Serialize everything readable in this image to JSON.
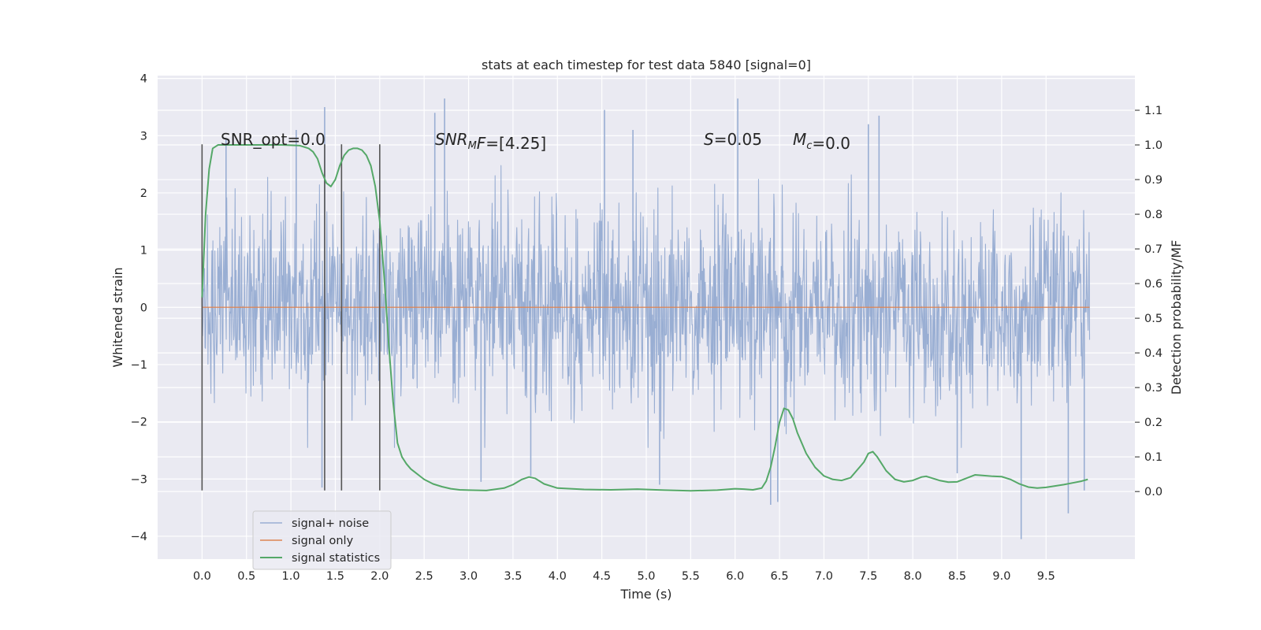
{
  "chart_data": {
    "type": "line",
    "title": "stats at each timestep for test data 5840 [signal=0]",
    "xlabel": "Time (s)",
    "ylabel": "Whitened strain",
    "y2label": "Detection probability/MF",
    "xlim": [
      -0.5,
      10.5
    ],
    "ylim": [
      -4.4,
      4.05
    ],
    "y2lim": [
      -0.195,
      1.2
    ],
    "x_ticks": [
      0.0,
      0.5,
      1.0,
      1.5,
      2.0,
      2.5,
      3.0,
      3.5,
      4.0,
      4.5,
      5.0,
      5.5,
      6.0,
      6.5,
      7.0,
      7.5,
      8.0,
      8.5,
      9.0,
      9.5
    ],
    "x_tick_labels": [
      "0.0",
      "0.5",
      "1.0",
      "1.5",
      "2.0",
      "2.5",
      "3.0",
      "3.5",
      "4.0",
      "4.5",
      "5.0",
      "5.5",
      "6.0",
      "6.5",
      "7.0",
      "7.5",
      "8.0",
      "8.5",
      "9.0",
      "9.5"
    ],
    "y_ticks": [
      -4,
      -3,
      -2,
      -1,
      0,
      1,
      2,
      3,
      4
    ],
    "y_tick_labels": [
      "−4",
      "−3",
      "−2",
      "−1",
      "0",
      "1",
      "2",
      "3",
      "4"
    ],
    "y2_ticks": [
      0.0,
      0.1,
      0.2,
      0.3,
      0.4,
      0.5,
      0.6,
      0.7,
      0.8,
      0.9,
      1.0,
      1.1
    ],
    "y2_tick_labels": [
      "0.0",
      "0.1",
      "0.2",
      "0.3",
      "0.4",
      "0.5",
      "0.6",
      "0.7",
      "0.8",
      "0.9",
      "1.0",
      "1.1"
    ],
    "grid": true,
    "legend_position": "lower-left",
    "colors": {
      "plot_background": "#eaeaf2",
      "grid": "#ffffff",
      "noise": "#99aed3",
      "signal": "#dd8452",
      "stats": "#55a868",
      "markers": "#555555"
    },
    "series": [
      {
        "name": "signal+ noise",
        "description_of_extent": "dense noise band, core roughly -1 to 1, spikes up to about 3.6 and down to about -4.0",
        "x_range": [
          0.0,
          9.99
        ],
        "envelope_spikes": [
          {
            "x": 0.27,
            "y": 2.95
          },
          {
            "x": 1.38,
            "y": 3.5
          },
          {
            "x": 1.06,
            "y": 3.1
          },
          {
            "x": 1.35,
            "y": -3.15
          },
          {
            "x": 2.73,
            "y": 3.65
          },
          {
            "x": 2.62,
            "y": 3.4
          },
          {
            "x": 3.7,
            "y": -2.95
          },
          {
            "x": 4.53,
            "y": 3.45
          },
          {
            "x": 4.85,
            "y": 3.1
          },
          {
            "x": 5.15,
            "y": -3.1
          },
          {
            "x": 6.03,
            "y": 3.65
          },
          {
            "x": 6.4,
            "y": -3.45
          },
          {
            "x": 6.48,
            "y": -3.4
          },
          {
            "x": 7.62,
            "y": 3.35
          },
          {
            "x": 7.5,
            "y": 3.2
          },
          {
            "x": 8.5,
            "y": -2.9
          },
          {
            "x": 9.22,
            "y": -4.05
          },
          {
            "x": 9.75,
            "y": -3.6
          },
          {
            "x": 9.93,
            "y": -3.2
          },
          {
            "x": 3.14,
            "y": -3.05
          }
        ]
      },
      {
        "name": "signal only",
        "x": [
          0.0,
          9.99
        ],
        "y": [
          0.0,
          0.0
        ]
      },
      {
        "name": "signal statistics",
        "axis": "right",
        "x": [
          0.0,
          0.04,
          0.08,
          0.12,
          0.18,
          0.25,
          0.35,
          0.5,
          0.7,
          0.9,
          1.1,
          1.2,
          1.25,
          1.3,
          1.35,
          1.4,
          1.45,
          1.5,
          1.55,
          1.6,
          1.65,
          1.7,
          1.75,
          1.8,
          1.85,
          1.9,
          1.95,
          2.0,
          2.05,
          2.1,
          2.15,
          2.2,
          2.25,
          2.3,
          2.35,
          2.4,
          2.45,
          2.5,
          2.6,
          2.7,
          2.8,
          2.9,
          3.0,
          3.2,
          3.4,
          3.5,
          3.6,
          3.68,
          3.75,
          3.85,
          4.0,
          4.3,
          4.6,
          4.9,
          5.2,
          5.5,
          5.8,
          6.0,
          6.1,
          6.2,
          6.3,
          6.35,
          6.4,
          6.45,
          6.5,
          6.55,
          6.6,
          6.65,
          6.7,
          6.8,
          6.9,
          7.0,
          7.1,
          7.2,
          7.3,
          7.4,
          7.45,
          7.5,
          7.55,
          7.6,
          7.65,
          7.7,
          7.8,
          7.9,
          8.0,
          8.1,
          8.15,
          8.2,
          8.3,
          8.4,
          8.5,
          8.6,
          8.7,
          8.8,
          8.9,
          9.0,
          9.1,
          9.2,
          9.3,
          9.4,
          9.5,
          9.6,
          9.7,
          9.8,
          9.9,
          9.97
        ],
        "y": [
          0.56,
          0.8,
          0.93,
          0.99,
          1.0,
          1.0,
          1.0,
          1.0,
          1.0,
          1.0,
          0.998,
          0.99,
          0.98,
          0.96,
          0.92,
          0.89,
          0.88,
          0.9,
          0.94,
          0.97,
          0.985,
          0.99,
          0.99,
          0.985,
          0.97,
          0.94,
          0.88,
          0.78,
          0.62,
          0.43,
          0.26,
          0.14,
          0.1,
          0.08,
          0.065,
          0.055,
          0.045,
          0.035,
          0.022,
          0.014,
          0.008,
          0.005,
          0.004,
          0.003,
          0.01,
          0.02,
          0.035,
          0.042,
          0.038,
          0.022,
          0.01,
          0.006,
          0.005,
          0.007,
          0.004,
          0.002,
          0.004,
          0.008,
          0.007,
          0.005,
          0.01,
          0.03,
          0.07,
          0.13,
          0.2,
          0.24,
          0.235,
          0.21,
          0.17,
          0.11,
          0.07,
          0.045,
          0.035,
          0.032,
          0.04,
          0.07,
          0.085,
          0.11,
          0.115,
          0.1,
          0.08,
          0.06,
          0.035,
          0.028,
          0.032,
          0.042,
          0.044,
          0.04,
          0.032,
          0.027,
          0.028,
          0.038,
          0.048,
          0.046,
          0.044,
          0.043,
          0.035,
          0.022,
          0.013,
          0.01,
          0.012,
          0.016,
          0.02,
          0.025,
          0.03,
          0.035
        ]
      }
    ],
    "vertical_markers": [
      0.0,
      1.38,
      1.57,
      2.0
    ],
    "marker_y_range": [
      -3.2,
      2.85
    ],
    "annotations": [
      {
        "parts": [
          {
            "text": "SNR_opt=0.0",
            "italic": false
          }
        ]
      },
      {
        "parts": [
          {
            "text": "SNR",
            "italic": true
          },
          {
            "text": "M",
            "italic": true,
            "sub": true
          },
          {
            "text": "F",
            "italic": true
          },
          {
            "text": "=[4.25]",
            "italic": false
          }
        ]
      },
      {
        "parts": [
          {
            "text": "S",
            "italic": true
          },
          {
            "text": "=0.05",
            "italic": false
          }
        ]
      },
      {
        "parts": [
          {
            "text": "M",
            "italic": true
          },
          {
            "text": "c",
            "italic": true,
            "sub": true
          },
          {
            "text": "=0.0",
            "italic": false
          }
        ]
      }
    ]
  }
}
